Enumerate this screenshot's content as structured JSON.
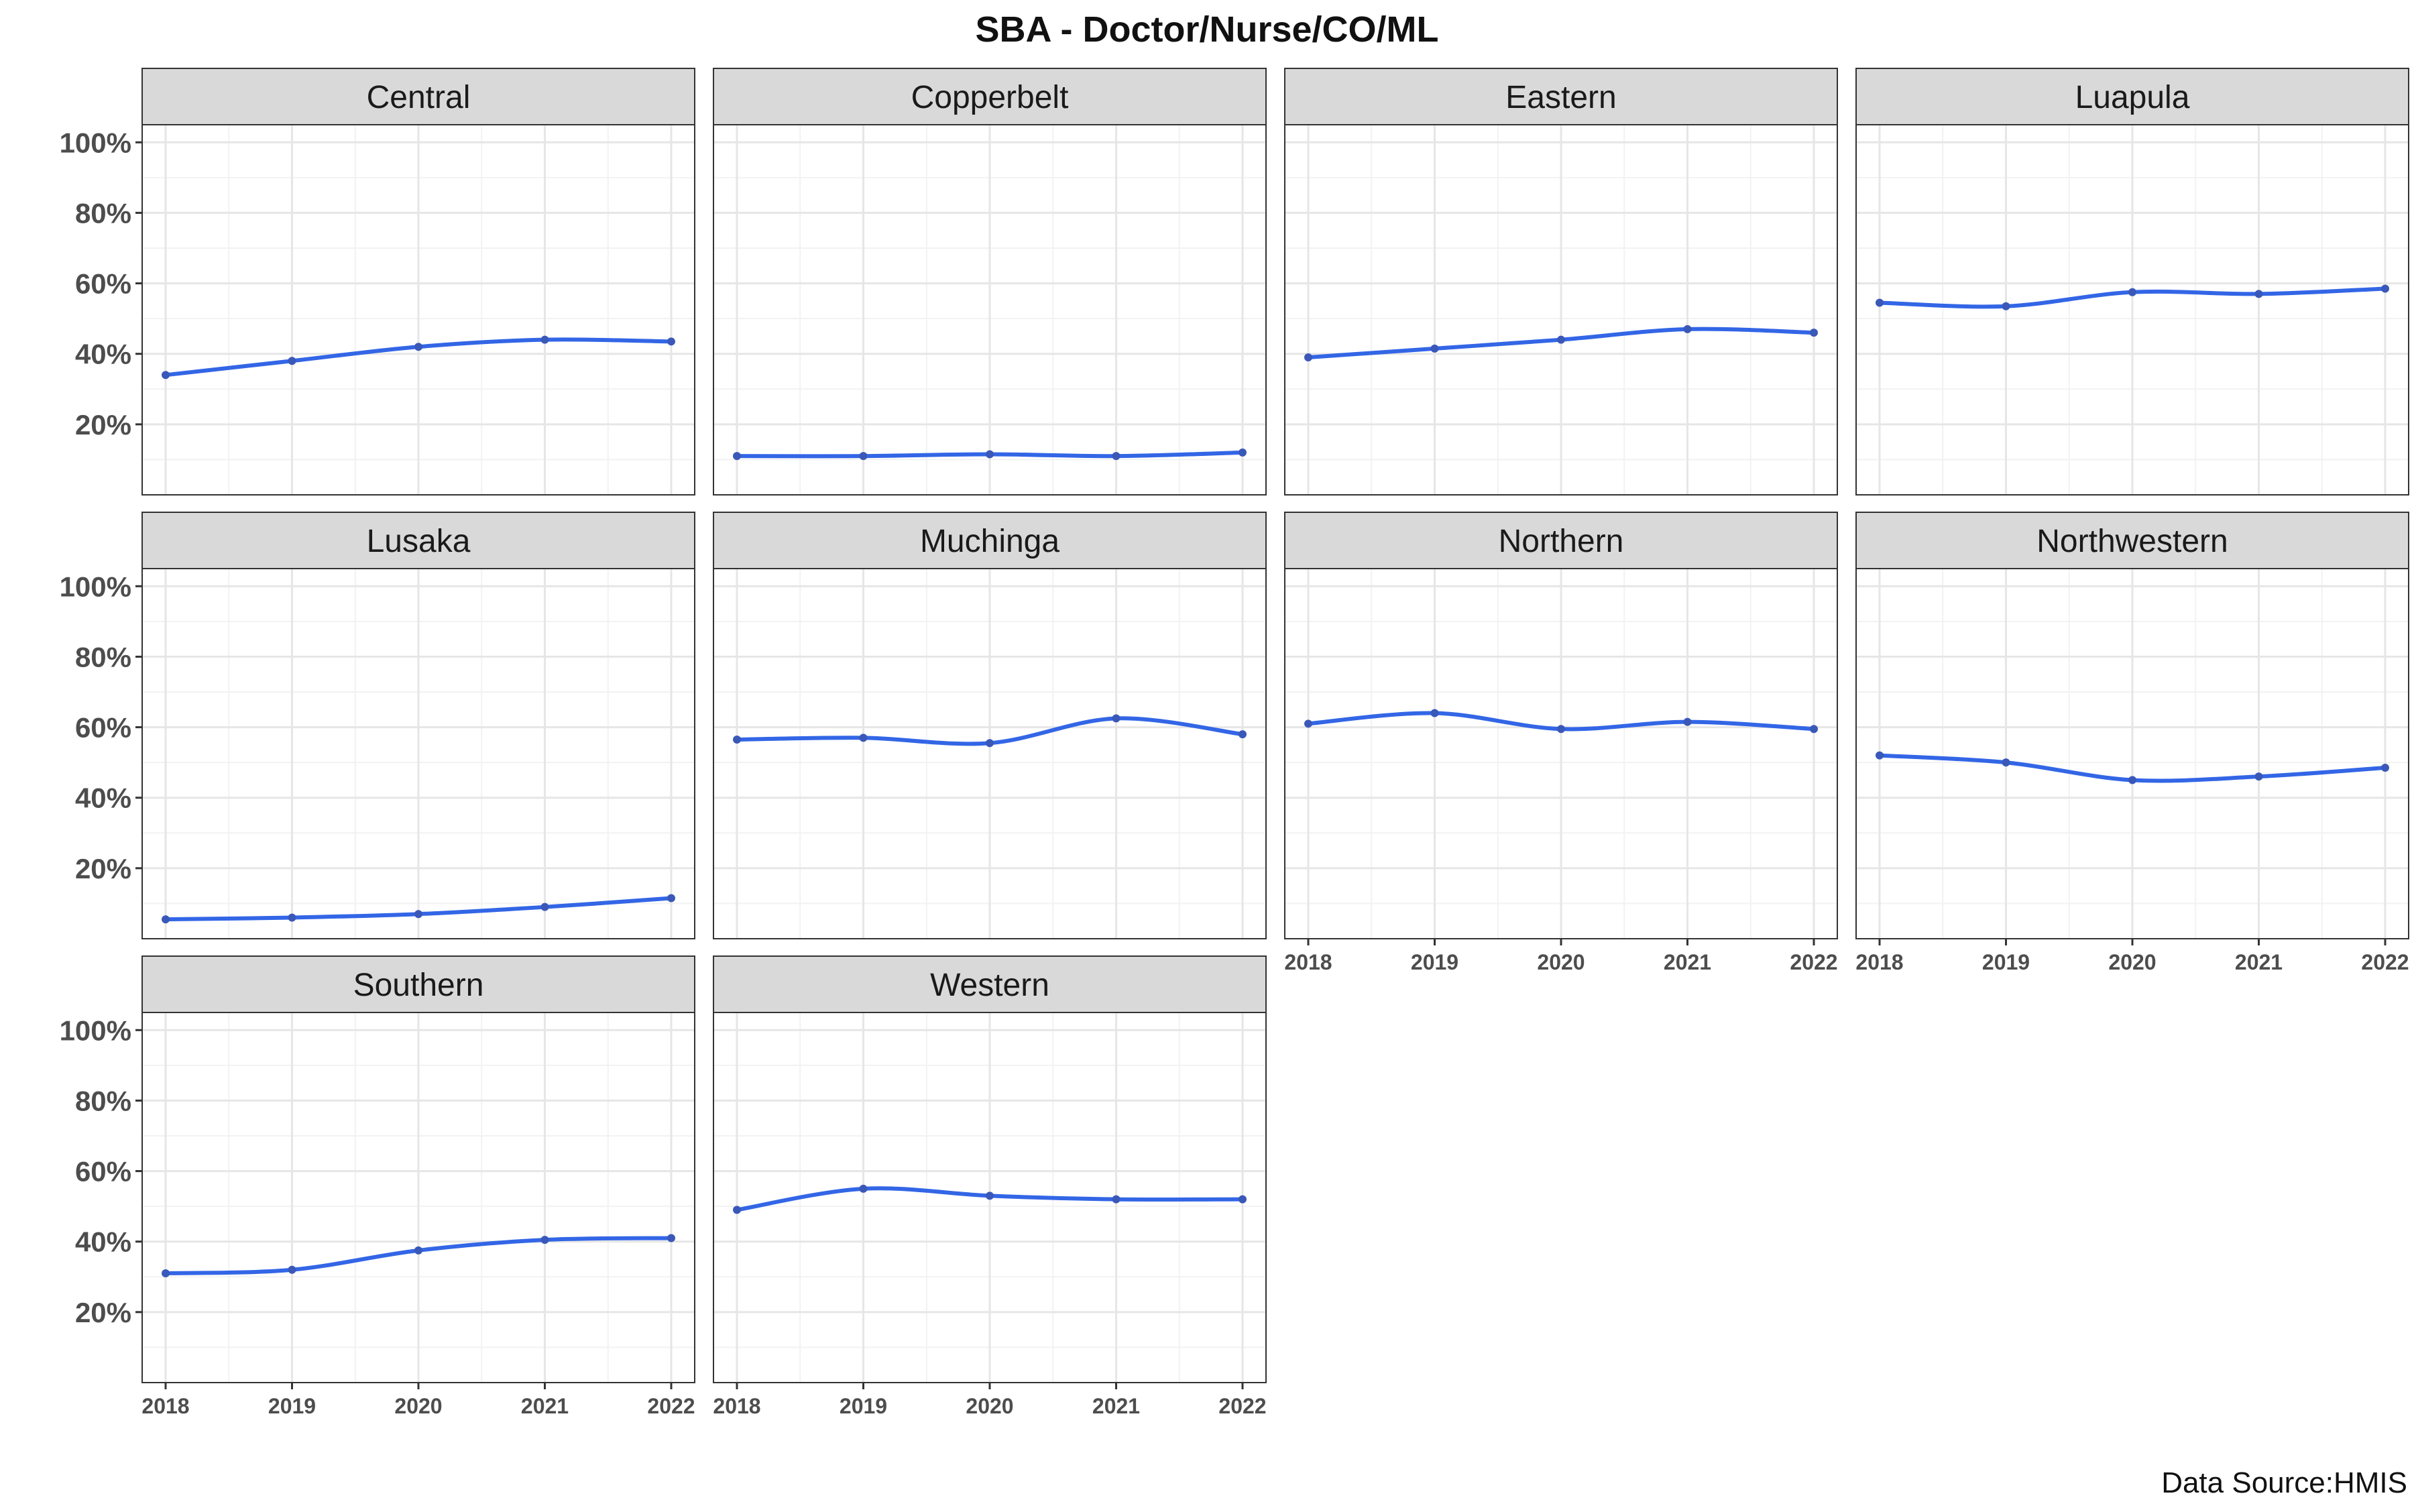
{
  "chart_data": {
    "type": "line",
    "title": "SBA - Doctor/Nurse/CO/ML",
    "caption": "Data Source:HMIS",
    "xlabel": "",
    "ylabel": "",
    "x": [
      "2018",
      "2019",
      "2020",
      "2021",
      "2022"
    ],
    "ylim": [
      0,
      105
    ],
    "y_ticks": [
      "20%",
      "40%",
      "60%",
      "80%",
      "100%"
    ],
    "y_tick_values": [
      20,
      40,
      60,
      80,
      100
    ],
    "grid": true,
    "series_color": "#3366e6",
    "panels": [
      {
        "name": "Central",
        "values": [
          34,
          38,
          42,
          44,
          43.5
        ]
      },
      {
        "name": "Copperbelt",
        "values": [
          11,
          11,
          11.5,
          11,
          12
        ]
      },
      {
        "name": "Eastern",
        "values": [
          39,
          41.5,
          44,
          47,
          46
        ]
      },
      {
        "name": "Luapula",
        "values": [
          54.5,
          53.5,
          57.5,
          57,
          58.5
        ]
      },
      {
        "name": "Lusaka",
        "values": [
          5.5,
          6,
          7,
          9,
          11.5
        ]
      },
      {
        "name": "Muchinga",
        "values": [
          56.5,
          57,
          55.5,
          62.5,
          58
        ]
      },
      {
        "name": "Northern",
        "values": [
          61,
          64,
          59.5,
          61.5,
          59.5
        ]
      },
      {
        "name": "Northwestern",
        "values": [
          52,
          50,
          45,
          46,
          48.5
        ]
      },
      {
        "name": "Southern",
        "values": [
          31,
          32,
          37.5,
          40.5,
          41
        ]
      },
      {
        "name": "Western",
        "values": [
          49,
          55,
          53,
          52,
          52
        ]
      }
    ]
  },
  "colors": {
    "strip_fill": "#d9d9d9",
    "strip_border": "#333333",
    "panel_border": "#333333",
    "grid_major": "#e6e6e6",
    "grid_minor": "#f2f2f2",
    "line": "#3366e6",
    "point": "#3a58b8"
  }
}
